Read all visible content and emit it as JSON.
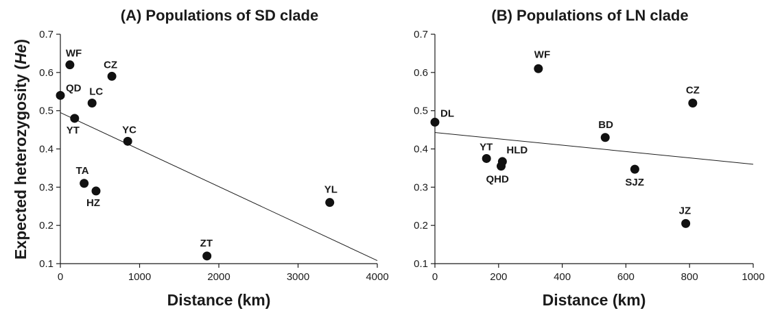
{
  "y_axis_label": {
    "prefix": "Expected heterozygosity (",
    "italic": "He",
    "suffix": ")"
  },
  "chart_data": [
    {
      "type": "scatter",
      "title": "(A) Populations of SD clade",
      "xlabel": "Distance (km)",
      "ylabel": "Expected heterozygosity (He)",
      "xlim": [
        0,
        4000
      ],
      "ylim": [
        0.1,
        0.7
      ],
      "x_ticks": [
        0,
        1000,
        2000,
        3000,
        4000
      ],
      "y_ticks": [
        0.1,
        0.2,
        0.3,
        0.4,
        0.5,
        0.6,
        0.7
      ],
      "points": [
        {
          "label": "WF",
          "x": 120,
          "y": 0.62
        },
        {
          "label": "CZ",
          "x": 650,
          "y": 0.59
        },
        {
          "label": "QD",
          "x": 0,
          "y": 0.54
        },
        {
          "label": "LC",
          "x": 400,
          "y": 0.52
        },
        {
          "label": "YT",
          "x": 180,
          "y": 0.48
        },
        {
          "label": "YC",
          "x": 850,
          "y": 0.42
        },
        {
          "label": "TA",
          "x": 300,
          "y": 0.31
        },
        {
          "label": "HZ",
          "x": 450,
          "y": 0.29
        },
        {
          "label": "YL",
          "x": 3400,
          "y": 0.26
        },
        {
          "label": "ZT",
          "x": 1850,
          "y": 0.12
        }
      ],
      "trendline": {
        "x": [
          0,
          4000
        ],
        "y": [
          0.495,
          0.108
        ]
      }
    },
    {
      "type": "scatter",
      "title": "(B) Populations of LN clade",
      "xlabel": "Distance (km)",
      "ylabel": "",
      "xlim": [
        0,
        1000
      ],
      "ylim": [
        0.1,
        0.7
      ],
      "x_ticks": [
        0,
        200,
        400,
        600,
        800,
        1000
      ],
      "y_ticks": [
        0.1,
        0.2,
        0.3,
        0.4,
        0.5,
        0.6,
        0.7
      ],
      "points": [
        {
          "label": "WF",
          "x": 325,
          "y": 0.61
        },
        {
          "label": "CZ",
          "x": 810,
          "y": 0.52
        },
        {
          "label": "DL",
          "x": 0,
          "y": 0.47
        },
        {
          "label": "BD",
          "x": 535,
          "y": 0.43
        },
        {
          "label": "YT",
          "x": 162,
          "y": 0.375
        },
        {
          "label": "HLD",
          "x": 212,
          "y": 0.367
        },
        {
          "label": "QHD",
          "x": 208,
          "y": 0.355
        },
        {
          "label": "SJZ",
          "x": 628,
          "y": 0.347
        },
        {
          "label": "JZ",
          "x": 788,
          "y": 0.205
        }
      ],
      "trendline": {
        "x": [
          0,
          1000
        ],
        "y": [
          0.443,
          0.36
        ]
      }
    }
  ]
}
